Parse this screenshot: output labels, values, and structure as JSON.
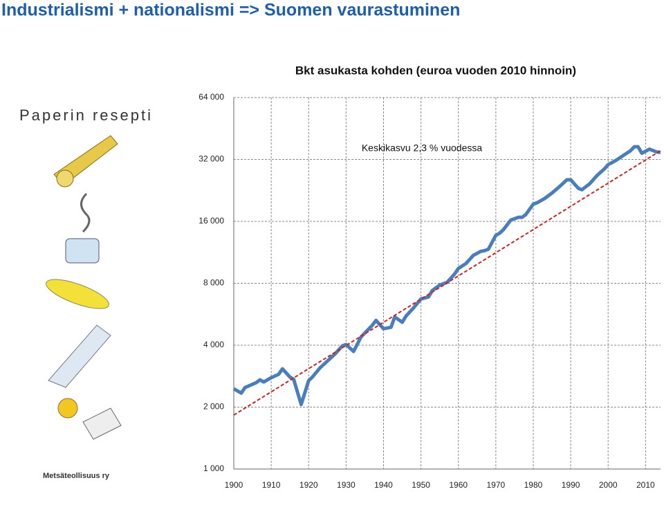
{
  "slide": {
    "title": "Industrialismi + nationalismi => Suomen vaurastuminen",
    "illustration_heading": "Paperin resepti",
    "illustration_credit": "Metsäteollisuus ry"
  },
  "chart_data": {
    "type": "line",
    "title": "Bkt asukasta kohden (euroa vuoden 2010 hinnoin)",
    "annotation": "Keskikasvu 2,3 % vuodessa",
    "log_scale": true,
    "grid": true,
    "xlim": [
      1900,
      2014
    ],
    "xticks": [
      1900,
      1910,
      1920,
      1930,
      1940,
      1950,
      1960,
      1970,
      1980,
      1990,
      2000,
      2010
    ],
    "ylim": [
      1000,
      64000
    ],
    "yticks": [
      {
        "value": 1000,
        "label": "1 000"
      },
      {
        "value": 2000,
        "label": "2 000"
      },
      {
        "value": 4000,
        "label": "4 000"
      },
      {
        "value": 8000,
        "label": "8 000"
      },
      {
        "value": 16000,
        "label": "16 000"
      },
      {
        "value": 32000,
        "label": "32 000"
      },
      {
        "value": 64000,
        "label": "64 000"
      }
    ],
    "series": [
      {
        "color": "#4a7ebb",
        "x": [
          1900,
          1902,
          1903,
          1906,
          1907,
          1908,
          1910,
          1912,
          1913,
          1915,
          1916,
          1918,
          1920,
          1921,
          1923,
          1925,
          1927,
          1929,
          1930,
          1932,
          1934,
          1937,
          1938,
          1940,
          1942,
          1943,
          1945,
          1946,
          1948,
          1950,
          1952,
          1953,
          1955,
          1956,
          1957,
          1959,
          1960,
          1962,
          1964,
          1966,
          1967,
          1968,
          1970,
          1971,
          1972,
          1974,
          1976,
          1977,
          1978,
          1980,
          1981,
          1983,
          1985,
          1987,
          1989,
          1990,
          1992,
          1993,
          1995,
          1997,
          1999,
          2000,
          2002,
          2004,
          2006,
          2007,
          2008,
          2009,
          2011,
          2013,
          2014
        ],
        "values": [
          2456,
          2340,
          2490,
          2630,
          2715,
          2650,
          2780,
          2890,
          3070,
          2800,
          2730,
          2060,
          2690,
          2800,
          3100,
          3350,
          3620,
          3970,
          4030,
          3730,
          4390,
          5000,
          5280,
          4810,
          4890,
          5490,
          5170,
          5540,
          6070,
          6710,
          6860,
          7370,
          7840,
          7960,
          8090,
          8880,
          9450,
          9970,
          10940,
          11440,
          11530,
          11710,
          13690,
          14010,
          14560,
          16230,
          16740,
          16740,
          17260,
          19400,
          19700,
          20650,
          21970,
          23600,
          25500,
          25500,
          23200,
          22800,
          24300,
          26700,
          28800,
          30200,
          31600,
          33400,
          35300,
          36900,
          36900,
          34300,
          35900,
          34800,
          34600
        ]
      }
    ],
    "trend": {
      "color": "#cc2222",
      "x": [
        1900,
        2014
      ],
      "values": [
        1830,
        35300
      ]
    }
  }
}
